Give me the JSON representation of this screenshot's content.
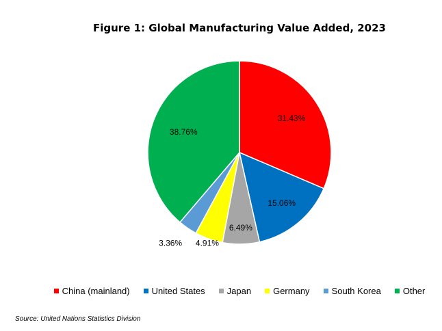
{
  "chart_data": {
    "type": "pie",
    "title": "Figure 1: Global Manufacturing Value Added, 2023",
    "categories": [
      "China (mainland)",
      "United States",
      "Japan",
      "Germany",
      "South Korea",
      "Other"
    ],
    "values": [
      31.43,
      15.06,
      6.49,
      4.91,
      3.36,
      38.76
    ],
    "value_labels": [
      "31.43%",
      "15.06%",
      "6.49%",
      "4.91%",
      "3.36%",
      "38.76%"
    ],
    "colors": [
      "#ff0000",
      "#0070c0",
      "#a6a6a6",
      "#ffff00",
      "#5b9bd5",
      "#00b050"
    ],
    "legend_position": "bottom",
    "start_angle": "12 o'clock",
    "direction": "clockwise"
  },
  "source": "Source: United Nations Statistics Division"
}
